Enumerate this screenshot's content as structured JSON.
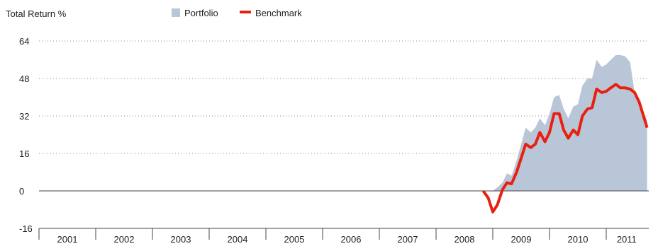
{
  "chart_data": {
    "type": "area",
    "title": "Total Return %",
    "xlabel": "",
    "ylabel": "Total Return %",
    "ylim": [
      -16,
      64
    ],
    "y_ticks": [
      64,
      48,
      32,
      16,
      0,
      -16
    ],
    "x_range": [
      2001,
      2011.72
    ],
    "categories": [
      "2001",
      "2002",
      "2003",
      "2004",
      "2005",
      "2006",
      "2007",
      "2008",
      "2009",
      "2010",
      "2011"
    ],
    "grid": true,
    "legend_position": "top",
    "series": [
      {
        "name": "Portfolio",
        "render": "area",
        "color": "#b9c6d8",
        "x": [
          2009.0,
          2009.08,
          2009.17,
          2009.25,
          2009.33,
          2009.42,
          2009.5,
          2009.58,
          2009.67,
          2009.75,
          2009.83,
          2009.92,
          2010.0,
          2010.08,
          2010.17,
          2010.25,
          2010.33,
          2010.42,
          2010.5,
          2010.58,
          2010.67,
          2010.75,
          2010.83,
          2010.92,
          2011.0,
          2011.08,
          2011.17,
          2011.25,
          2011.33,
          2011.42,
          2011.5,
          2011.58,
          2011.67,
          2011.72
        ],
        "values": [
          0,
          1.5,
          3.5,
          7.5,
          6.5,
          13,
          20,
          27,
          25,
          27,
          31,
          28,
          33,
          40,
          41,
          35,
          31,
          36,
          37,
          45,
          48,
          48,
          56,
          53,
          54,
          56,
          58,
          58,
          57.5,
          55,
          42,
          36,
          33,
          30
        ]
      },
      {
        "name": "Benchmark",
        "render": "line",
        "color": "#e8200f",
        "x": [
          2008.83,
          2008.92,
          2009.0,
          2009.08,
          2009.17,
          2009.25,
          2009.33,
          2009.42,
          2009.5,
          2009.58,
          2009.67,
          2009.75,
          2009.83,
          2009.92,
          2010.0,
          2010.08,
          2010.17,
          2010.25,
          2010.33,
          2010.42,
          2010.5,
          2010.58,
          2010.67,
          2010.75,
          2010.83,
          2010.92,
          2011.0,
          2011.08,
          2011.17,
          2011.25,
          2011.33,
          2011.42,
          2011.5,
          2011.58,
          2011.67,
          2011.72
        ],
        "values": [
          0,
          -3,
          -9,
          -6,
          0.5,
          3.5,
          3,
          8,
          14,
          20,
          18.5,
          20,
          25,
          21,
          25,
          33,
          33,
          26,
          22.5,
          26,
          24,
          32,
          35,
          35.5,
          43.5,
          42,
          42.5,
          44,
          45.5,
          44,
          44,
          43.5,
          42,
          38,
          31,
          27
        ]
      }
    ]
  }
}
